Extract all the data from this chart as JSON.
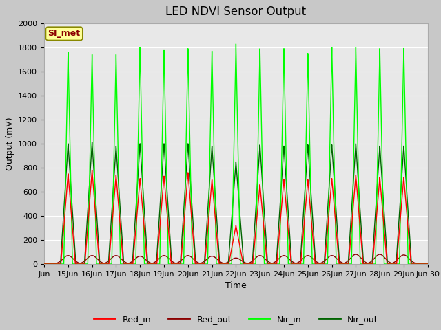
{
  "title": "LED NDVI Sensor Output",
  "xlabel": "Time",
  "ylabel": "Output (mV)",
  "ylim": [
    0,
    2000
  ],
  "background_color": "#c8c8c8",
  "plot_bg_color": "#e8e8e8",
  "plot_top_bg": "#d4d4d4",
  "annotation_text": "SI_met",
  "annotation_bg": "#ffff99",
  "annotation_border": "#888800",
  "annotation_text_color": "#8B0000",
  "legend_entries": [
    "Red_in",
    "Red_out",
    "Nir_in",
    "Nir_out"
  ],
  "legend_colors": [
    "#ff0000",
    "#8B0000",
    "#00ff00",
    "#006400"
  ],
  "grid_color": "#ffffff",
  "tick_label_fontsize": 8,
  "title_fontsize": 12,
  "num_days": 16,
  "peak_times": [
    1,
    2,
    3,
    4,
    5,
    6,
    7,
    8,
    9,
    10,
    11,
    12,
    13,
    14,
    15
  ],
  "red_in_peaks": [
    750,
    780,
    740,
    710,
    730,
    760,
    700,
    320,
    660,
    700,
    700,
    710,
    740,
    720,
    720
  ],
  "red_out_peaks": [
    70,
    70,
    70,
    65,
    70,
    70,
    65,
    50,
    70,
    70,
    70,
    70,
    80,
    80,
    75
  ],
  "nir_in_peaks": [
    1760,
    1740,
    1740,
    1800,
    1780,
    1790,
    1770,
    1830,
    1790,
    1790,
    1750,
    1800,
    1800,
    1790,
    1790
  ],
  "nir_out_peaks": [
    1000,
    1010,
    980,
    1000,
    1000,
    1000,
    980,
    850,
    990,
    980,
    990,
    990,
    1000,
    980,
    980
  ]
}
